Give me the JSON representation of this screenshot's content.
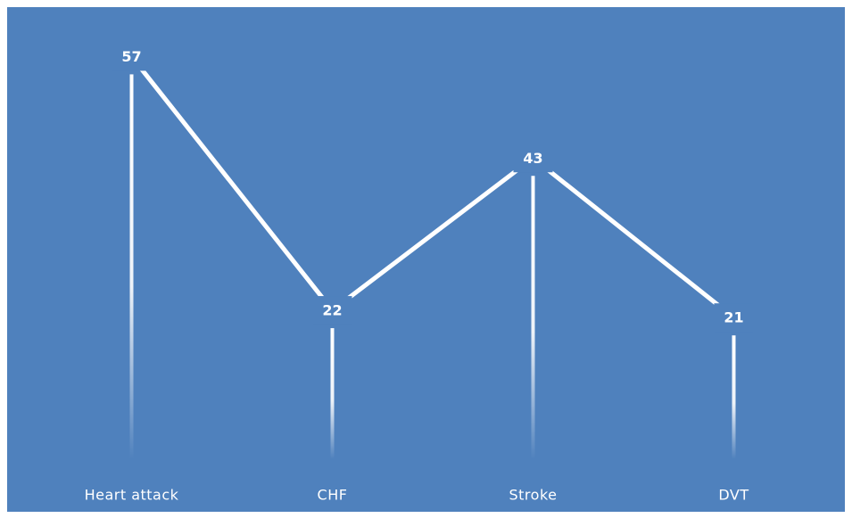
{
  "chart_data": {
    "type": "line",
    "categories": [
      "Heart attack",
      "CHF",
      "Stroke",
      "DVT"
    ],
    "values": [
      57,
      22,
      43,
      21
    ],
    "color": "#ffffff",
    "background": "#4f81bd",
    "ylim": [
      0,
      60
    ],
    "drop_lines": true
  }
}
